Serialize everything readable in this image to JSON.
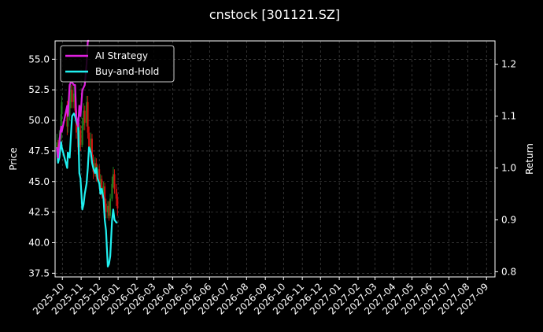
{
  "chart_data": {
    "type": "line",
    "title": "cnstock [301121.SZ]",
    "ylabel_left": "Price",
    "ylabel_right": "Return",
    "ylim_left": [
      37.2,
      56.5
    ],
    "ylim_right": [
      0.79,
      1.245
    ],
    "yticks_left": [
      "37.5",
      "40.0",
      "42.5",
      "45.0",
      "47.5",
      "50.0",
      "52.5",
      "55.0"
    ],
    "yticks_right": [
      "0.8",
      "0.9",
      "1.0",
      "1.1",
      "1.2"
    ],
    "xlim": [
      "2025-09-19",
      "2027-09-15"
    ],
    "xticks": [
      "2025-10",
      "2025-11",
      "2025-12",
      "2026-01",
      "2026-02",
      "2026-03",
      "2026-04",
      "2026-05",
      "2026-06",
      "2026-07",
      "2026-08",
      "2026-09",
      "2026-10",
      "2026-11",
      "2026-12",
      "2027-01",
      "2027-02",
      "2027-03",
      "2027-04",
      "2027-05",
      "2027-06",
      "2027-07",
      "2027-08",
      "2027-09"
    ],
    "grid": true,
    "legend_position": "top-left",
    "series": [
      {
        "name": "AI Strategy",
        "axis": "right",
        "color": "#e020e0",
        "x": [
          "2025-09-22",
          "2025-09-24",
          "2025-09-26",
          "2025-09-29",
          "2025-09-30",
          "2025-10-09",
          "2025-10-10",
          "2025-10-13",
          "2025-10-15",
          "2025-10-17",
          "2025-10-20",
          "2025-10-22",
          "2025-10-24",
          "2025-10-27",
          "2025-10-29",
          "2025-10-31",
          "2025-11-03",
          "2025-11-05",
          "2025-11-07",
          "2025-11-10",
          "2025-11-12",
          "2025-11-14"
        ],
        "values": [
          1.04,
          1.02,
          1.05,
          1.08,
          1.07,
          1.12,
          1.1,
          1.16,
          1.165,
          1.165,
          1.16,
          1.16,
          1.1,
          1.08,
          1.12,
          1.1,
          1.15,
          1.155,
          1.16,
          1.2,
          1.245,
          1.245
        ]
      },
      {
        "name": "Buy-and-Hold",
        "axis": "right",
        "color": "#20f0f0",
        "x": [
          "2025-09-22",
          "2025-09-24",
          "2025-09-26",
          "2025-09-29",
          "2025-09-30",
          "2025-10-09",
          "2025-10-10",
          "2025-10-13",
          "2025-10-15",
          "2025-10-17",
          "2025-10-20",
          "2025-10-22",
          "2025-10-24",
          "2025-10-27",
          "2025-10-29",
          "2025-10-31",
          "2025-11-03",
          "2025-11-05",
          "2025-11-07",
          "2025-11-10",
          "2025-11-12",
          "2025-11-14",
          "2025-11-17",
          "2025-11-19",
          "2025-11-21",
          "2025-11-24",
          "2025-11-26",
          "2025-11-28",
          "2025-12-01",
          "2025-12-03",
          "2025-12-05",
          "2025-12-08",
          "2025-12-10",
          "2025-12-12",
          "2025-12-15",
          "2025-12-17",
          "2025-12-19",
          "2025-12-22",
          "2025-12-24",
          "2025-12-26",
          "2025-12-29",
          "2025-12-31"
        ],
        "values": [
          1.04,
          1.01,
          1.02,
          1.05,
          1.04,
          1.0,
          1.03,
          1.02,
          1.06,
          1.1,
          1.105,
          1.1,
          1.09,
          1.08,
          0.99,
          0.98,
          0.92,
          0.93,
          0.95,
          0.97,
          1.0,
          1.04,
          1.03,
          1.01,
          1.0,
          0.99,
          1.0,
          0.98,
          0.97,
          0.95,
          0.96,
          0.94,
          0.9,
          0.88,
          0.81,
          0.815,
          0.83,
          0.9,
          0.92,
          0.9,
          0.895,
          0.895
        ]
      }
    ],
    "candles": {
      "axis": "left",
      "up_color": "#208020",
      "down_color": "#d01010",
      "items": [
        {
          "date": "2025-09-22",
          "open": 47.5,
          "close": 48.2,
          "high": 48.9,
          "low": 47.0
        },
        {
          "date": "2025-09-24",
          "open": 48.0,
          "close": 47.2,
          "high": 48.4,
          "low": 46.8
        },
        {
          "date": "2025-09-26",
          "open": 47.3,
          "close": 48.6,
          "high": 49.2,
          "low": 47.0
        },
        {
          "date": "2025-09-29",
          "open": 48.5,
          "close": 50.5,
          "high": 51.2,
          "low": 48.2
        },
        {
          "date": "2025-09-30",
          "open": 50.5,
          "close": 51.5,
          "high": 52.0,
          "low": 50.0
        },
        {
          "date": "2025-10-09",
          "open": 51.0,
          "close": 49.5,
          "high": 51.6,
          "low": 48.8
        },
        {
          "date": "2025-10-10",
          "open": 49.5,
          "close": 50.4,
          "high": 51.0,
          "low": 49.0
        },
        {
          "date": "2025-10-13",
          "open": 50.4,
          "close": 51.8,
          "high": 52.4,
          "low": 50.0
        },
        {
          "date": "2025-10-15",
          "open": 51.5,
          "close": 52.5,
          "high": 53.0,
          "low": 51.0
        },
        {
          "date": "2025-10-17",
          "open": 52.5,
          "close": 51.5,
          "high": 52.9,
          "low": 51.0
        },
        {
          "date": "2025-10-20",
          "open": 51.5,
          "close": 52.2,
          "high": 52.8,
          "low": 51.0
        },
        {
          "date": "2025-10-22",
          "open": 52.0,
          "close": 50.8,
          "high": 52.4,
          "low": 50.4
        },
        {
          "date": "2025-10-24",
          "open": 50.8,
          "close": 49.0,
          "high": 51.2,
          "low": 48.5
        },
        {
          "date": "2025-10-27",
          "open": 49.0,
          "close": 47.8,
          "high": 49.5,
          "low": 47.2
        },
        {
          "date": "2025-10-29",
          "open": 47.8,
          "close": 49.2,
          "high": 49.8,
          "low": 47.4
        },
        {
          "date": "2025-10-31",
          "open": 49.2,
          "close": 48.0,
          "high": 49.6,
          "low": 47.5
        },
        {
          "date": "2025-11-03",
          "open": 48.0,
          "close": 49.6,
          "high": 50.2,
          "low": 47.8
        },
        {
          "date": "2025-11-05",
          "open": 49.6,
          "close": 50.8,
          "high": 51.4,
          "low": 49.2
        },
        {
          "date": "2025-11-07",
          "open": 50.8,
          "close": 49.8,
          "high": 51.2,
          "low": 49.2
        },
        {
          "date": "2025-11-10",
          "open": 49.8,
          "close": 51.5,
          "high": 52.0,
          "low": 49.5
        },
        {
          "date": "2025-11-12",
          "open": 51.5,
          "close": 49.0,
          "high": 52.0,
          "low": 48.5
        },
        {
          "date": "2025-11-14",
          "open": 49.0,
          "close": 47.5,
          "high": 49.5,
          "low": 47.0
        },
        {
          "date": "2025-11-17",
          "open": 47.5,
          "close": 48.5,
          "high": 49.0,
          "low": 47.0
        },
        {
          "date": "2025-11-19",
          "open": 48.5,
          "close": 46.8,
          "high": 48.9,
          "low": 46.4
        },
        {
          "date": "2025-11-21",
          "open": 46.8,
          "close": 45.8,
          "high": 47.2,
          "low": 45.2
        },
        {
          "date": "2025-11-24",
          "open": 45.8,
          "close": 46.5,
          "high": 47.0,
          "low": 45.4
        },
        {
          "date": "2025-11-26",
          "open": 46.5,
          "close": 45.4,
          "high": 46.9,
          "low": 45.0
        },
        {
          "date": "2025-11-28",
          "open": 45.4,
          "close": 46.0,
          "high": 46.4,
          "low": 45.0
        },
        {
          "date": "2025-12-01",
          "open": 46.0,
          "close": 44.8,
          "high": 46.3,
          "low": 44.4
        },
        {
          "date": "2025-12-03",
          "open": 44.8,
          "close": 45.2,
          "high": 45.6,
          "low": 44.4
        },
        {
          "date": "2025-12-05",
          "open": 45.2,
          "close": 44.0,
          "high": 45.5,
          "low": 43.6
        },
        {
          "date": "2025-12-08",
          "open": 44.0,
          "close": 44.6,
          "high": 45.0,
          "low": 43.6
        },
        {
          "date": "2025-12-10",
          "open": 44.6,
          "close": 43.2,
          "high": 44.9,
          "low": 42.8
        },
        {
          "date": "2025-12-12",
          "open": 43.2,
          "close": 42.5,
          "high": 43.6,
          "low": 42.0
        },
        {
          "date": "2025-12-15",
          "open": 42.5,
          "close": 43.0,
          "high": 43.4,
          "low": 42.0
        },
        {
          "date": "2025-12-17",
          "open": 43.0,
          "close": 42.2,
          "high": 43.4,
          "low": 41.8
        },
        {
          "date": "2025-12-19",
          "open": 42.2,
          "close": 43.6,
          "high": 44.0,
          "low": 42.0
        },
        {
          "date": "2025-12-22",
          "open": 43.6,
          "close": 44.8,
          "high": 45.4,
          "low": 43.4
        },
        {
          "date": "2025-12-24",
          "open": 44.8,
          "close": 45.6,
          "high": 46.2,
          "low": 44.5
        },
        {
          "date": "2025-12-26",
          "open": 45.6,
          "close": 44.4,
          "high": 46.0,
          "low": 44.0
        },
        {
          "date": "2025-12-29",
          "open": 44.4,
          "close": 43.6,
          "high": 44.8,
          "low": 43.0
        },
        {
          "date": "2025-12-31",
          "open": 43.6,
          "close": 42.8,
          "high": 44.0,
          "low": 42.2
        }
      ]
    }
  }
}
